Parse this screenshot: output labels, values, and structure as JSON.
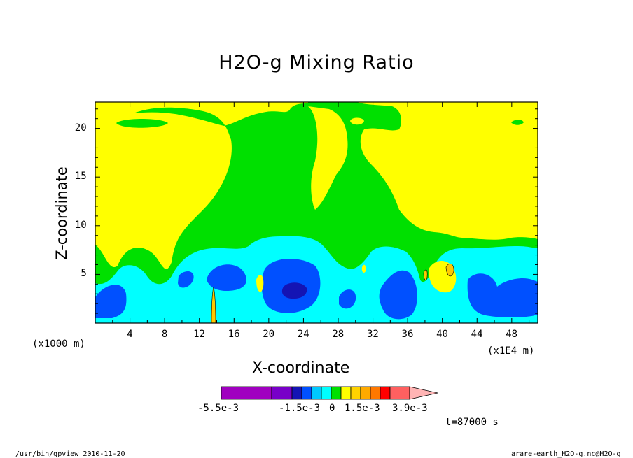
{
  "chart_data": {
    "type": "heatmap",
    "title": "H2O-g Mixing Ratio",
    "xlabel": "X-coordinate",
    "ylabel": "Z-coordinate",
    "x_unit_left": "(x1000 m)",
    "x_unit_right": "(x1E4 m)",
    "x_ticks": [
      "4",
      "8",
      "12",
      "16",
      "20",
      "24",
      "28",
      "32",
      "36",
      "40",
      "44",
      "48"
    ],
    "y_ticks": [
      "5",
      "10",
      "15",
      "20"
    ],
    "xlim": [
      0,
      51
    ],
    "ylim": [
      0,
      22.7
    ],
    "levels": [
      -0.0055,
      -0.0015,
      0,
      0.0015,
      0.0039
    ],
    "colorbar_labels": [
      "-5.5e-3",
      "-1.5e-3",
      "0",
      "1.5e-3",
      "3.9e-3"
    ],
    "colorbar_colors": [
      "#a000c0",
      "#7800c8",
      "#1414b4",
      "#0050ff",
      "#00c8ff",
      "#00ffff",
      "#00e000",
      "#ffff00",
      "#ffd200",
      "#ffaa00",
      "#ff7800",
      "#ff0000",
      "#ff6060",
      "#ffb4b4"
    ],
    "time_label": "t=87000 s",
    "colors": {
      "yellow": "#ffff00",
      "green": "#00e000",
      "cyan": "#00ffff",
      "blue": "#0050ff",
      "darkblue": "#1414b4",
      "orange": "#ffc800"
    }
  },
  "footer": {
    "left": "/usr/bin/gpview  2010-11-20",
    "right": "arare-earth_H2O-g.nc@H2O-g"
  }
}
